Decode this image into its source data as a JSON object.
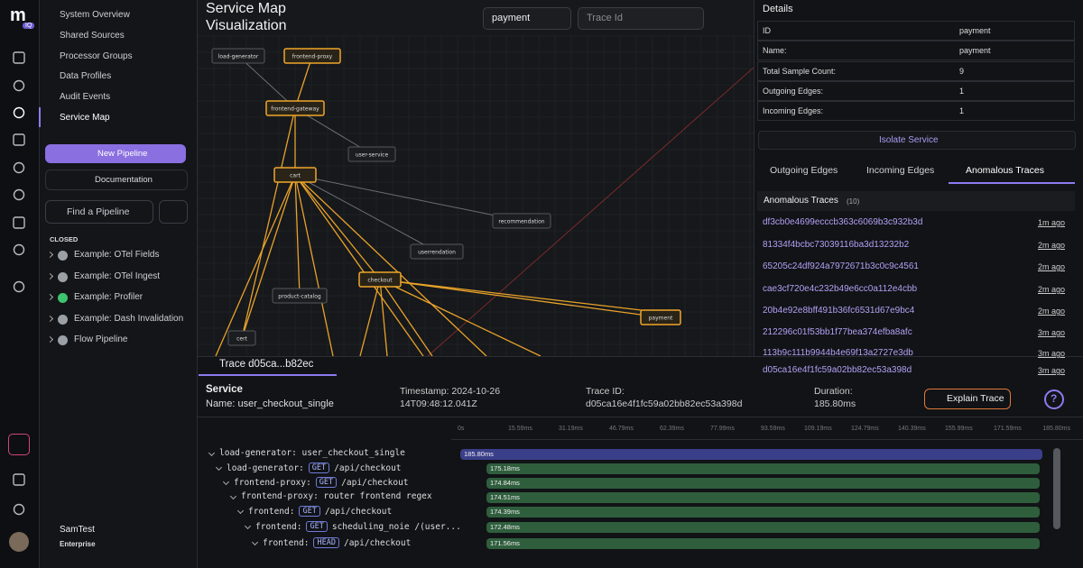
{
  "logo": {
    "letter": "m",
    "badge": "IQ"
  },
  "nav_menu": [
    "System Overview",
    "Shared Sources",
    "Processor Groups",
    "Data Profiles",
    "Audit Events",
    "Service Map"
  ],
  "buttons": {
    "new_pipeline": "New Pipeline",
    "documentation": "Documentation"
  },
  "pipeline_search": {
    "placeholder": "Find a Pipeline"
  },
  "pipelines_section": "CLOSED",
  "pipelines": [
    {
      "name": "Example: OTel Fields",
      "icon_color": "#9aa0a6"
    },
    {
      "name": "Example: OTel Ingest",
      "icon_color": "#9aa0a6"
    },
    {
      "name": "Example: Profiler",
      "icon_color": "#3ec46d"
    },
    {
      "name": "Example: Dash Invalidation",
      "icon_color": "#9aa0a6"
    },
    {
      "name": "Flow Pipeline",
      "icon_color": "#9aa0a6"
    }
  ],
  "user": {
    "name": "SamTest",
    "plan": "Enterprise"
  },
  "header": {
    "title": "Service Map Visualization",
    "service_select": "payment",
    "trace_search_placeholder": "Trace Id"
  },
  "graph": {
    "nodes": [
      "load-generator",
      "frontend-proxy",
      "frontend-gateway",
      "user-service",
      "cart",
      "recommendation",
      "userrendation",
      "checkout",
      "product-catalog",
      "payment",
      "cert"
    ]
  },
  "details": {
    "title": "Details",
    "rows": [
      [
        "ID",
        "payment"
      ],
      [
        "Name:",
        "payment"
      ],
      [
        "Total Sample Count:",
        9
      ],
      [
        "Outgoing Edges:",
        1
      ],
      [
        "Incoming Edges:",
        1
      ]
    ],
    "isolate_button": "Isolate Service",
    "tabs": [
      "Outgoing Edges",
      "Incoming Edges",
      "Anomalous Traces"
    ],
    "anomalous_title": "Anomalous Traces",
    "anomalous_count": "(10)",
    "traces": [
      {
        "id": "df3cb0e4699ecccb363c6069b3c932b3d",
        "age": "1m ago"
      },
      {
        "id": "81334f4bcbc73039116ba3d13232b2",
        "age": "2m ago"
      },
      {
        "id": "65205c24df924a7972671b3c0c9c4561",
        "age": "2m ago"
      },
      {
        "id": "cae3cf720e4c232b49e6cc0a112e4cbb",
        "age": "2m ago"
      },
      {
        "id": "20b4e92e8bff491b36fc6531d67e9bc4",
        "age": "2m ago"
      },
      {
        "id": "212296c01f53bb1f77bea374efba8afc",
        "age": "3m ago"
      },
      {
        "id": "113b9c111b9944b4e69f13a2727e3db",
        "age": "3m ago"
      },
      {
        "id": "d05ca16e4f1fc59a02bb82ec53a398d",
        "age": "3m ago"
      }
    ]
  },
  "trace": {
    "tab": "Trace d05ca...b82ec",
    "service_label": "Service",
    "name": "Name: user_checkout_single",
    "timestamp": "Timestamp: 2024-10-26 14T09:48:12.041Z",
    "trace_id": "Trace ID: d05ca16e4f1fc59a02bb82ec53a398d",
    "duration": "Duration: 185.80ms",
    "explain_button": "Explain Trace",
    "help": "?",
    "ticks": [
      "0s",
      "15.59ms",
      "31.19ms",
      "46.79ms",
      "62.39ms",
      "77.99ms",
      "93.59ms",
      "109.19ms",
      "124.79ms",
      "140.39ms",
      "155.99ms",
      "171.59ms",
      "185.80ms"
    ],
    "spans": [
      {
        "name": "load-generator: user_checkout_single",
        "duration": "185.80ms"
      },
      {
        "name": "load-generator:",
        "method": "GET",
        "path": "/api/checkout",
        "duration": "175.18ms"
      },
      {
        "name": "frontend-proxy:",
        "method": "GET",
        "path": "/api/checkout",
        "duration": "174.84ms"
      },
      {
        "name": "frontend-proxy: router frontend regex",
        "duration": "174.51ms"
      },
      {
        "name": "frontend:",
        "method": "GET",
        "path": "/api/checkout",
        "duration": "174.39ms"
      },
      {
        "name": "frontend:",
        "method": "GET",
        "path": "scheduling_noie /(user...",
        "duration": "172.48ms"
      },
      {
        "name": "frontend:",
        "method": "HEAD",
        "path": "/api/checkout",
        "duration": "171.56ms"
      }
    ]
  }
}
